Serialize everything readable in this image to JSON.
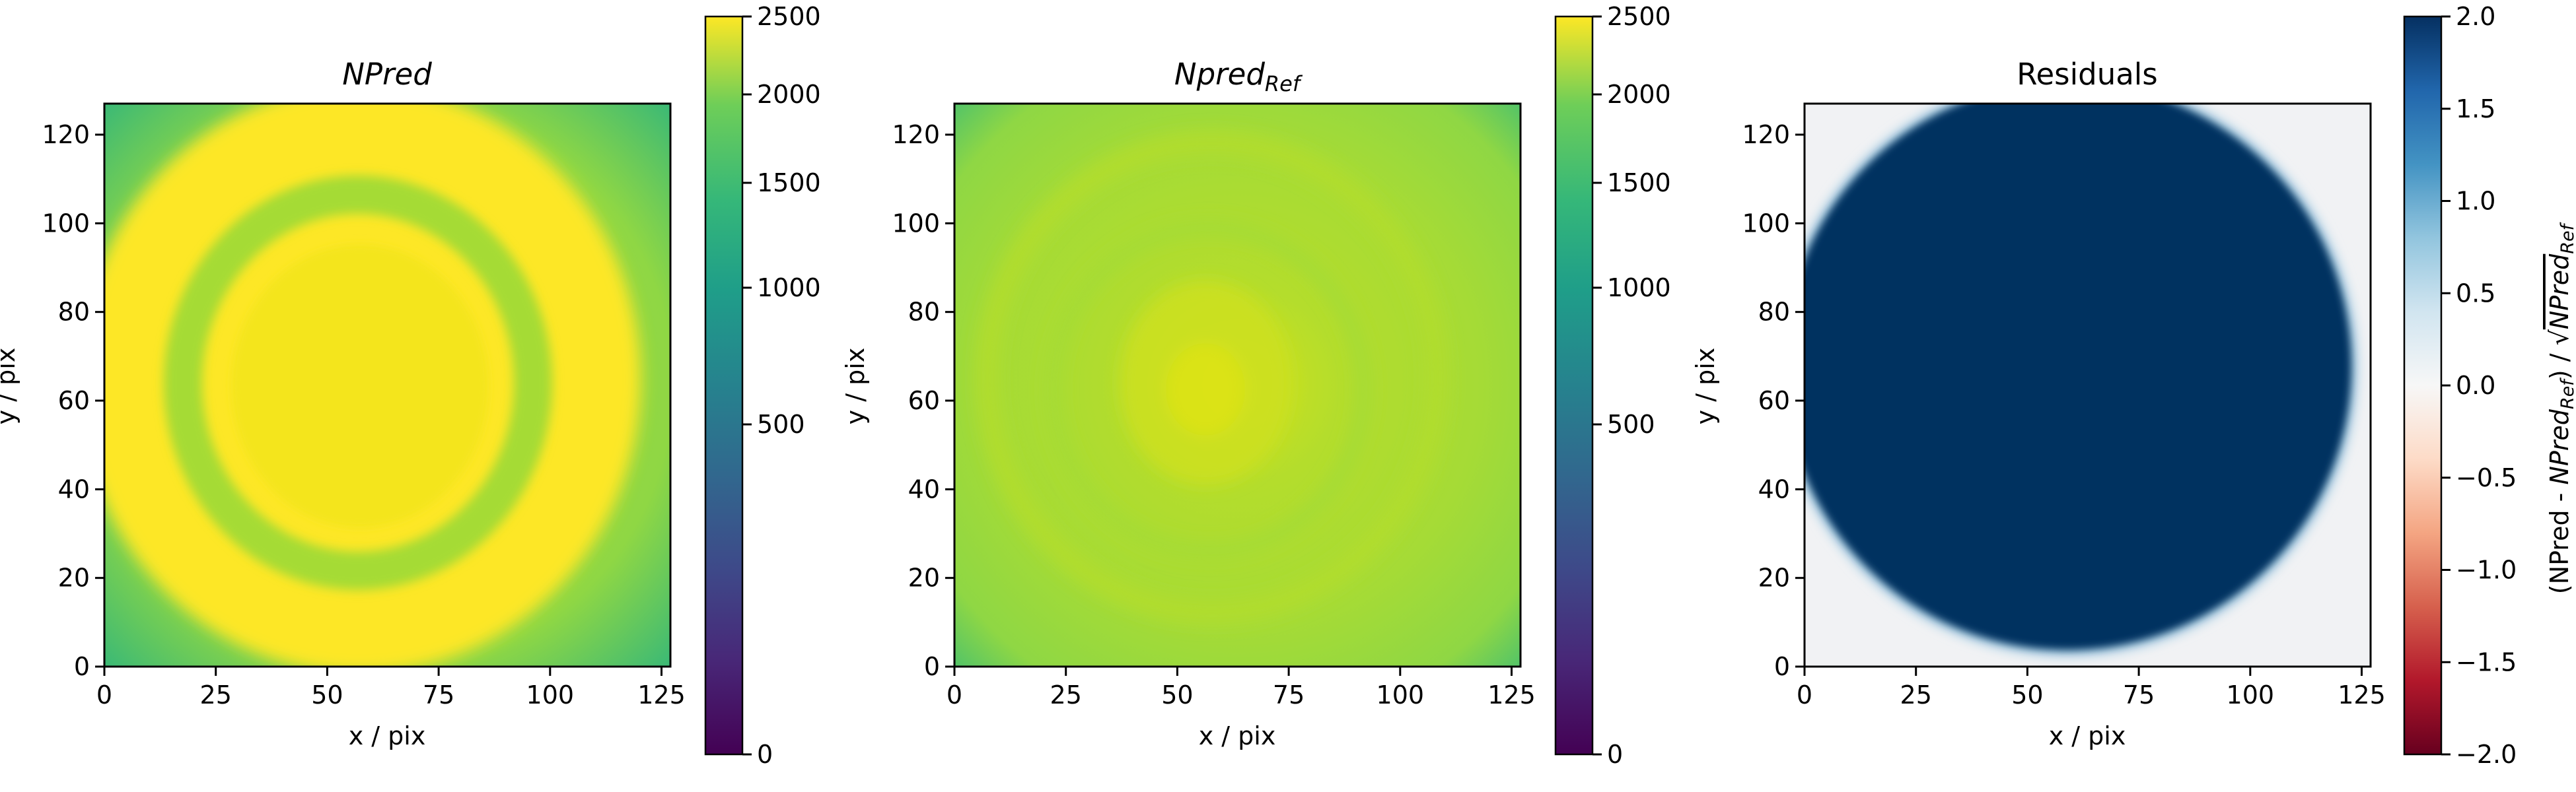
{
  "chart_data": [
    {
      "type": "heatmap",
      "title": "NPred",
      "title_style": "italic",
      "xlabel": "x / pix",
      "ylabel": "y / pix",
      "xlim": [
        0,
        127
      ],
      "ylim": [
        0,
        127
      ],
      "xticks": [
        "0",
        "25",
        "50",
        "75",
        "100",
        "125"
      ],
      "yticks": [
        "0",
        "20",
        "40",
        "60",
        "80",
        "100",
        "120"
      ],
      "colormap": "viridis",
      "colorbar": {
        "scale": "sqrt",
        "range": [
          0,
          2500
        ],
        "ticks": [
          0,
          500,
          1000,
          1500,
          2000,
          2500
        ],
        "tick_labels": [
          "0",
          "500",
          "1000",
          "1500",
          "2000",
          "2500"
        ]
      }
    },
    {
      "type": "heatmap",
      "title": "Npred",
      "title_subscript": "Ref",
      "title_style": "italic",
      "xlabel": "x / pix",
      "ylabel": "y / pix",
      "xlim": [
        0,
        127
      ],
      "ylim": [
        0,
        127
      ],
      "xticks": [
        "0",
        "25",
        "50",
        "75",
        "100",
        "125"
      ],
      "yticks": [
        "0",
        "20",
        "40",
        "60",
        "80",
        "100",
        "120"
      ],
      "colormap": "viridis",
      "colorbar": {
        "scale": "sqrt",
        "range": [
          0,
          2500
        ],
        "ticks": [
          0,
          500,
          1000,
          1500,
          2000,
          2500
        ],
        "tick_labels": [
          "0",
          "500",
          "1000",
          "1500",
          "2000",
          "2500"
        ]
      }
    },
    {
      "type": "heatmap",
      "title": "Residuals",
      "xlabel": "x / pix",
      "ylabel": "y / pix",
      "xlim": [
        0,
        127
      ],
      "ylim": [
        0,
        127
      ],
      "xticks": [
        "0",
        "25",
        "50",
        "75",
        "100",
        "125"
      ],
      "yticks": [
        "0",
        "20",
        "40",
        "60",
        "80",
        "100",
        "120"
      ],
      "colormap": "RdBu",
      "colorbar": {
        "scale": "linear",
        "range": [
          -2.0,
          2.0
        ],
        "ticks": [
          -2.0,
          -1.5,
          -1.0,
          -0.5,
          0.0,
          0.5,
          1.0,
          1.5,
          2.0
        ],
        "tick_labels": [
          "−2.0",
          "−1.5",
          "−1.0",
          "−0.5",
          "0.0",
          "0.5",
          "1.0",
          "1.5",
          "2.0"
        ],
        "label": "(NPred - NPred_Ref) / √NPred_Ref",
        "label_parts": [
          "(NPred - ",
          "NPred",
          "Ref",
          ") / √",
          "NPred",
          "Ref"
        ]
      }
    }
  ]
}
